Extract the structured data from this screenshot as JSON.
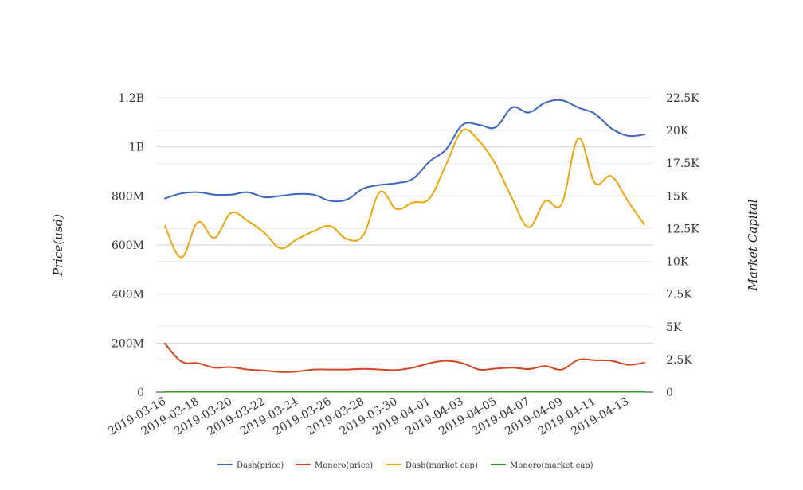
{
  "chart_data": {
    "type": "line",
    "title": "",
    "xlabel": "",
    "ylabel_left": "Price(usd)",
    "ylabel_right": "Market Capital",
    "left_axis": {
      "ylim": [
        0,
        1200000000
      ],
      "ticks": [
        0,
        200000000,
        400000000,
        600000000,
        800000000,
        1000000000,
        1200000000
      ],
      "tick_labels": [
        "0",
        "200M",
        "400M",
        "600M",
        "800M",
        "1B",
        "1.2B"
      ]
    },
    "right_axis": {
      "ylim": [
        0,
        22500
      ],
      "ticks": [
        0,
        2500,
        5000,
        7500,
        10000,
        12500,
        15000,
        17500,
        20000,
        22500
      ],
      "tick_labels": [
        "0",
        "2.5K",
        "5K",
        "7.5K",
        "10K",
        "12.5K",
        "15K",
        "17.5K",
        "20K",
        "22.5K"
      ]
    },
    "grid": true,
    "legend_position": "bottom",
    "x": [
      "2019-03-16",
      "2019-03-17",
      "2019-03-18",
      "2019-03-19",
      "2019-03-20",
      "2019-03-21",
      "2019-03-22",
      "2019-03-23",
      "2019-03-24",
      "2019-03-25",
      "2019-03-26",
      "2019-03-27",
      "2019-03-28",
      "2019-03-29",
      "2019-03-30",
      "2019-03-31",
      "2019-04-01",
      "2019-04-02",
      "2019-04-03",
      "2019-04-04",
      "2019-04-05",
      "2019-04-06",
      "2019-04-07",
      "2019-04-08",
      "2019-04-09",
      "2019-04-10",
      "2019-04-11",
      "2019-04-12",
      "2019-04-13",
      "2019-04-14"
    ],
    "x_tick_labels": [
      "2019-03-16",
      "2019-03-18",
      "2019-03-20",
      "2019-03-22",
      "2019-03-24",
      "2019-03-26",
      "2019-03-28",
      "2019-03-30",
      "2019-04-01",
      "2019-04-03",
      "2019-04-05",
      "2019-04-07",
      "2019-04-09",
      "2019-04-11",
      "2019-04-13"
    ],
    "series": [
      {
        "name": "Dash(price)",
        "axis": "left",
        "color": "#3a66c2",
        "values": [
          790000000,
          810000000,
          815000000,
          805000000,
          805000000,
          815000000,
          795000000,
          800000000,
          808000000,
          805000000,
          780000000,
          785000000,
          830000000,
          845000000,
          852000000,
          870000000,
          940000000,
          990000000,
          1090000000,
          1090000000,
          1080000000,
          1160000000,
          1140000000,
          1180000000,
          1190000000,
          1160000000,
          1135000000,
          1075000000,
          1045000000,
          1050000000
        ]
      },
      {
        "name": "Monero(price)",
        "axis": "left",
        "color": "#d4451f",
        "values": [
          198000000,
          125000000,
          118000000,
          100000000,
          102000000,
          92000000,
          88000000,
          82000000,
          84000000,
          92000000,
          92000000,
          92000000,
          95000000,
          92000000,
          90000000,
          100000000,
          118000000,
          128000000,
          118000000,
          92000000,
          96000000,
          100000000,
          94000000,
          106000000,
          92000000,
          132000000,
          130000000,
          128000000,
          112000000,
          120000000
        ]
      },
      {
        "name": "Dash(market cap)",
        "axis": "right",
        "color": "#f0a30a",
        "values": [
          12700,
          10300,
          13000,
          11800,
          13700,
          13100,
          12200,
          11000,
          11700,
          12300,
          12700,
          11700,
          12000,
          15300,
          14000,
          14500,
          14800,
          17400,
          20000,
          19200,
          17400,
          14800,
          12600,
          14600,
          14400,
          19400,
          16000,
          16500,
          14600,
          12800
        ]
      },
      {
        "name": "Monero(market cap)",
        "axis": "right",
        "color": "#2a9a2a",
        "values": [
          30,
          30,
          30,
          30,
          30,
          30,
          30,
          30,
          30,
          30,
          30,
          30,
          30,
          30,
          30,
          30,
          30,
          30,
          30,
          30,
          30,
          30,
          30,
          30,
          30,
          30,
          30,
          30,
          30,
          30
        ]
      }
    ]
  }
}
